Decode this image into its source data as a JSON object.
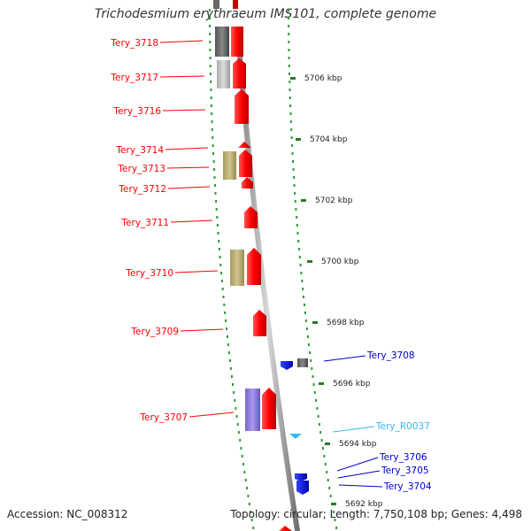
{
  "title": "Trichodesmium erythraeum IMS101, complete genome",
  "footer": {
    "accession": "Accession: NC_008312",
    "topology": "Topology: circular; Length: 7,750,108 bp; Genes: 4,498"
  },
  "colors": {
    "red_gene": "#ff0000",
    "blue_gene": "#0000cc",
    "cyan_gene": "#33bbee",
    "tick_green": "#339933",
    "backbone": "#999999"
  },
  "scale_labels": [
    "5706 kbp",
    "5704 kbp",
    "5702 kbp",
    "5700 kbp",
    "5698 kbp",
    "5696 kbp",
    "5694 kbp",
    "5692 kbp"
  ],
  "gene_labels": [
    {
      "name": "Tery_3718",
      "color": "red"
    },
    {
      "name": "Tery_3717",
      "color": "red"
    },
    {
      "name": "Tery_3716",
      "color": "red"
    },
    {
      "name": "Tery_3714",
      "color": "red"
    },
    {
      "name": "Tery_3713",
      "color": "red"
    },
    {
      "name": "Tery_3712",
      "color": "red"
    },
    {
      "name": "Tery_3711",
      "color": "red"
    },
    {
      "name": "Tery_3710",
      "color": "red"
    },
    {
      "name": "Tery_3709",
      "color": "red"
    },
    {
      "name": "Tery_3708",
      "color": "blue"
    },
    {
      "name": "Tery_3707",
      "color": "red"
    },
    {
      "name": "Tery_R0037",
      "color": "cyan"
    },
    {
      "name": "Tery_3706",
      "color": "blue"
    },
    {
      "name": "Tery_3705",
      "color": "blue"
    },
    {
      "name": "Tery_3704",
      "color": "blue"
    }
  ]
}
